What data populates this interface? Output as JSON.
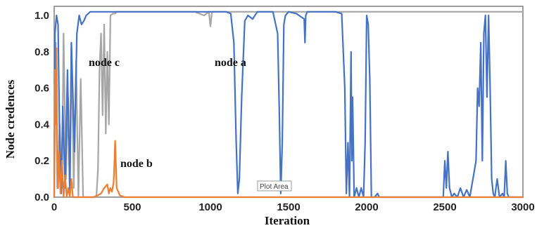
{
  "chart_data": {
    "type": "line",
    "xlabel": "Iteration",
    "ylabel": "Node credences",
    "xlim": [
      0,
      3000
    ],
    "ylim": [
      0,
      1.05
    ],
    "xticks": [
      0,
      500,
      1000,
      1500,
      2000,
      2500,
      3000
    ],
    "yticks": [
      0.0,
      0.2,
      0.4,
      0.6,
      0.8,
      1.0
    ],
    "xtick_labels": [
      "0",
      "500",
      "1000",
      "1500",
      "2000",
      "2500",
      "3000"
    ],
    "ytick_labels": [
      "0.0",
      "0.2",
      "0.4",
      "0.6",
      "0.8",
      "1.0"
    ],
    "grid": false,
    "tooltip": "Plot Area",
    "series": [
      {
        "name": "node c",
        "color": "#a6a6a6",
        "x": [
          0,
          10,
          20,
          35,
          50,
          60,
          75,
          90,
          100,
          110,
          125,
          140,
          155,
          170,
          185,
          200,
          220,
          250,
          270,
          280,
          290,
          300,
          310,
          320,
          330,
          340,
          350,
          360,
          375,
          390,
          400,
          420,
          450,
          500,
          600,
          800,
          900,
          960,
          990,
          1000,
          1010,
          1040,
          1100,
          1300,
          1600,
          2000,
          2500,
          3000
        ],
        "y": [
          0.0,
          0.85,
          0.05,
          0.4,
          0.05,
          0.9,
          0.1,
          0.55,
          0.0,
          0.85,
          0.05,
          0.75,
          0.0,
          0.65,
          0.0,
          0.0,
          0.0,
          0.0,
          0.0,
          0.15,
          0.7,
          0.9,
          0.45,
          0.95,
          0.35,
          0.8,
          0.4,
          1.0,
          1.01,
          1.01,
          1.02,
          1.02,
          1.02,
          1.02,
          1.02,
          1.02,
          1.02,
          1.0,
          1.02,
          0.94,
          1.02,
          1.02,
          1.02,
          1.02,
          1.02,
          1.02,
          1.02,
          1.02
        ]
      },
      {
        "name": "node a",
        "color": "#4472c4",
        "x": [
          0,
          5,
          15,
          25,
          35,
          45,
          55,
          70,
          85,
          100,
          110,
          130,
          145,
          160,
          175,
          190,
          205,
          230,
          300,
          500,
          800,
          1000,
          1100,
          1130,
          1150,
          1165,
          1175,
          1185,
          1200,
          1220,
          1240,
          1270,
          1300,
          1400,
          1430,
          1440,
          1450,
          1460,
          1470,
          1480,
          1500,
          1550,
          1600,
          1605,
          1610,
          1620,
          1700,
          1800,
          1840,
          1860,
          1870,
          1880,
          1890,
          1900,
          1905,
          1910,
          1920,
          1935,
          1950,
          1965,
          1980,
          1990,
          2000,
          2010,
          2020,
          2030,
          2050,
          2070,
          2080,
          2100,
          2200,
          2400,
          2490,
          2500,
          2510,
          2520,
          2530,
          2545,
          2560,
          2580,
          2600,
          2620,
          2640,
          2660,
          2680,
          2700,
          2710,
          2720,
          2730,
          2740,
          2750,
          2760,
          2770,
          2780,
          2790,
          2800,
          2810,
          2820,
          2835,
          2850,
          2870,
          2880,
          2890,
          2900,
          2910,
          2920,
          2940,
          3000
        ],
        "y": [
          0.0,
          0.9,
          1.0,
          0.95,
          0.3,
          0.02,
          0.5,
          0.05,
          0.7,
          0.02,
          0.85,
          0.25,
          0.9,
          1.0,
          0.95,
          0.97,
          1.0,
          1.02,
          1.02,
          1.02,
          1.02,
          1.02,
          1.02,
          1.01,
          0.85,
          0.3,
          0.02,
          0.1,
          0.55,
          0.97,
          1.0,
          0.98,
          1.02,
          1.02,
          0.9,
          0.5,
          0.02,
          0.3,
          0.95,
          1.0,
          1.02,
          1.01,
          0.98,
          0.85,
          1.0,
          1.02,
          1.02,
          1.02,
          1.01,
          0.6,
          0.02,
          0.3,
          0.0,
          0.8,
          0.2,
          0.55,
          0.0,
          0.05,
          0.0,
          0.05,
          0.0,
          0.3,
          1.0,
          0.95,
          0.65,
          0.0,
          0.0,
          0.02,
          0.0,
          0.0,
          0.0,
          0.0,
          0.0,
          0.2,
          0.05,
          0.25,
          0.05,
          0.0,
          0.02,
          0.0,
          0.05,
          0.0,
          0.04,
          0.0,
          0.1,
          0.2,
          0.6,
          0.5,
          0.85,
          0.2,
          0.9,
          1.0,
          0.55,
          1.0,
          0.6,
          0.1,
          0.02,
          0.0,
          0.1,
          0.0,
          0.02,
          0.0,
          0.2,
          0.02,
          0.0,
          0.0,
          0.0,
          0.0
        ]
      },
      {
        "name": "node b",
        "color": "#ed7d31",
        "x": [
          0,
          5,
          10,
          15,
          20,
          25,
          30,
          40,
          50,
          60,
          70,
          80,
          90,
          100,
          110,
          120,
          140,
          200,
          250,
          280,
          300,
          320,
          340,
          350,
          360,
          370,
          380,
          385,
          390,
          400,
          410,
          420,
          450,
          500,
          800,
          1500,
          2000,
          2500,
          3000
        ],
        "y": [
          0.0,
          0.7,
          0.4,
          0.82,
          0.2,
          0.05,
          0.25,
          0.02,
          0.2,
          0.0,
          0.12,
          0.0,
          0.05,
          0.0,
          0.1,
          0.0,
          0.0,
          0.0,
          0.0,
          0.01,
          0.02,
          0.05,
          0.07,
          0.02,
          0.05,
          0.03,
          0.08,
          0.18,
          0.31,
          0.05,
          0.03,
          0.01,
          0.0,
          0.0,
          0.0,
          0.0,
          0.0,
          0.0,
          0.0
        ]
      }
    ]
  }
}
